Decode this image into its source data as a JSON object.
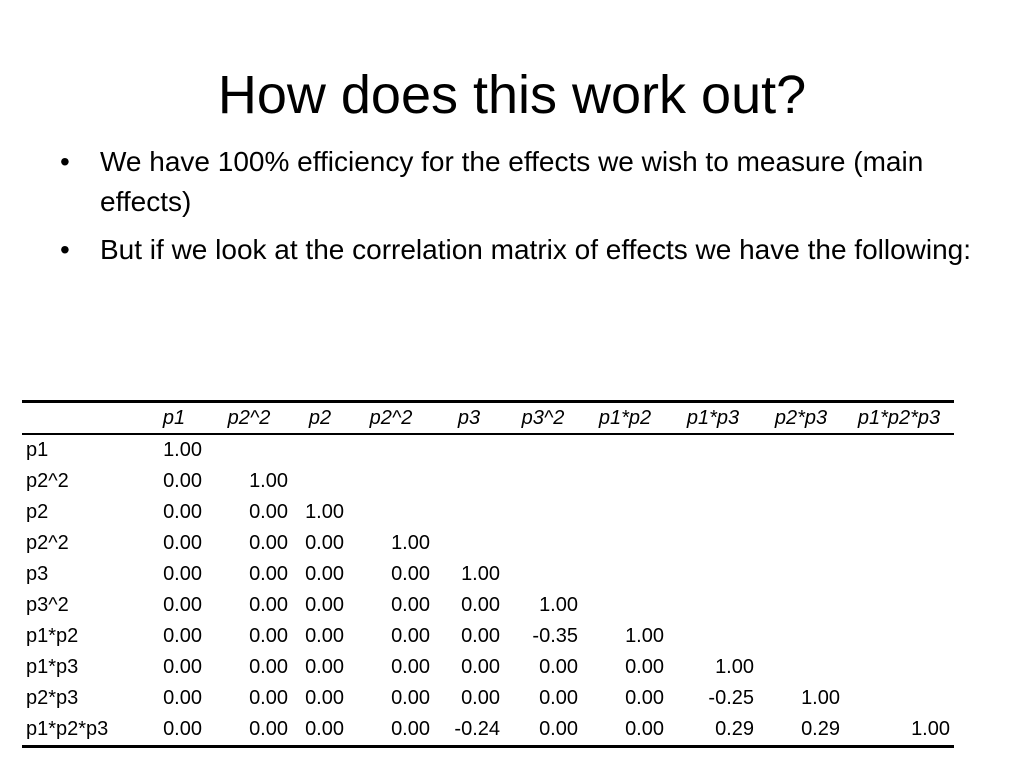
{
  "slide": {
    "title": "How does this work out?",
    "bullets": [
      "We have 100% efficiency for the effects we wish to measure (main effects)",
      "But if we look at the correlation matrix of effects we have the following:"
    ]
  },
  "table": {
    "columns": [
      "p1",
      "p2^2",
      "p2",
      "p2^2",
      "p3",
      "p3^2",
      "p1*p2",
      "p1*p3",
      "p2*p3",
      "p1*p2*p3"
    ],
    "rows": [
      {
        "label": "p1",
        "values": [
          "1.00",
          "",
          "",
          "",
          "",
          "",
          "",
          "",
          "",
          ""
        ]
      },
      {
        "label": "p2^2",
        "values": [
          "0.00",
          "1.00",
          "",
          "",
          "",
          "",
          "",
          "",
          "",
          ""
        ]
      },
      {
        "label": "p2",
        "values": [
          "0.00",
          "0.00",
          "1.00",
          "",
          "",
          "",
          "",
          "",
          "",
          ""
        ]
      },
      {
        "label": "p2^2",
        "values": [
          "0.00",
          "0.00",
          "0.00",
          "1.00",
          "",
          "",
          "",
          "",
          "",
          ""
        ]
      },
      {
        "label": "p3",
        "values": [
          "0.00",
          "0.00",
          "0.00",
          "0.00",
          "1.00",
          "",
          "",
          "",
          "",
          ""
        ]
      },
      {
        "label": "p3^2",
        "values": [
          "0.00",
          "0.00",
          "0.00",
          "0.00",
          "0.00",
          "1.00",
          "",
          "",
          "",
          ""
        ]
      },
      {
        "label": "p1*p2",
        "values": [
          "0.00",
          "0.00",
          "0.00",
          "0.00",
          "0.00",
          "-0.35",
          "1.00",
          "",
          "",
          ""
        ]
      },
      {
        "label": "p1*p3",
        "values": [
          "0.00",
          "0.00",
          "0.00",
          "0.00",
          "0.00",
          "0.00",
          "0.00",
          "1.00",
          "",
          ""
        ]
      },
      {
        "label": "p2*p3",
        "values": [
          "0.00",
          "0.00",
          "0.00",
          "0.00",
          "0.00",
          "0.00",
          "0.00",
          "-0.25",
          "1.00",
          ""
        ]
      },
      {
        "label": "p1*p2*p3",
        "values": [
          "0.00",
          "0.00",
          "0.00",
          "0.00",
          "-0.24",
          "0.00",
          "0.00",
          "0.29",
          "0.29",
          "1.00"
        ]
      }
    ]
  }
}
